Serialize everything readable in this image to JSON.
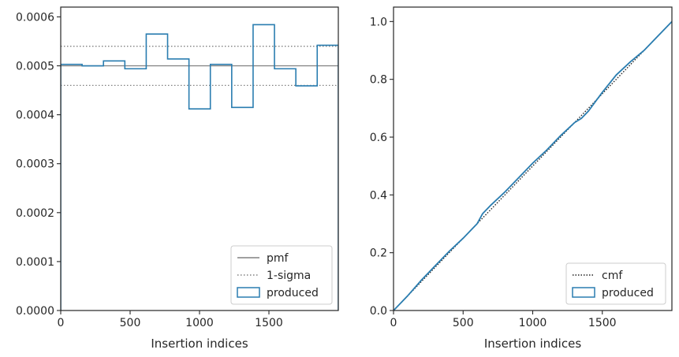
{
  "colors": {
    "hist": "#2a7db0",
    "pmf": "#808080",
    "sigma": "#808080",
    "cmf": "#222222",
    "axes": "#262626"
  },
  "chart_data": [
    {
      "type": "line",
      "xlabel": "Insertion indices",
      "ylabel": "",
      "xlim": [
        0,
        2000
      ],
      "ylim": [
        0,
        0.00062
      ],
      "xticks": [
        0,
        500,
        1000,
        1500
      ],
      "xtick_labels": [
        "0",
        "500",
        "1000",
        "1500"
      ],
      "yticks": [
        0,
        0.0001,
        0.0002,
        0.0003,
        0.0004,
        0.0005,
        0.0006
      ],
      "ytick_labels": [
        "0.0000",
        "0.0001",
        "0.0002",
        "0.0003",
        "0.0004",
        "0.0005",
        "0.0006"
      ],
      "grid": false,
      "legend_position": "lower-right",
      "hlines": [
        {
          "name": "pmf",
          "y": 0.0005,
          "style": "solid"
        },
        {
          "name": "1-sigma",
          "y": 0.00054,
          "style": "dotted"
        },
        {
          "name": "1-sigma",
          "y": 0.00046,
          "style": "dotted"
        }
      ],
      "histogram": {
        "name": "produced",
        "bin_edges": [
          0,
          154,
          308,
          462,
          616,
          770,
          924,
          1078,
          1232,
          1386,
          1540,
          1694,
          1848,
          2000
        ],
        "values": [
          0.000503,
          0.0005,
          0.00051,
          0.000494,
          0.000565,
          0.000514,
          0.000412,
          0.000503,
          0.000415,
          0.000584,
          0.000494,
          0.000459,
          0.000542
        ]
      },
      "legend": [
        "pmf",
        "1-sigma",
        "produced"
      ]
    },
    {
      "type": "line",
      "xlabel": "Insertion indices",
      "ylabel": "",
      "xlim": [
        0,
        2000
      ],
      "ylim": [
        0,
        1.05
      ],
      "xticks": [
        0,
        500,
        1000,
        1500
      ],
      "xtick_labels": [
        "0",
        "500",
        "1000",
        "1500"
      ],
      "yticks": [
        0,
        0.2,
        0.4,
        0.6,
        0.8,
        1.0
      ],
      "ytick_labels": [
        "0.0",
        "0.2",
        "0.4",
        "0.6",
        "0.8",
        "1.0"
      ],
      "grid": false,
      "legend_position": "lower-right",
      "series": [
        {
          "name": "cmf",
          "style": "dotted",
          "x": [
            0,
            2000
          ],
          "y": [
            0,
            1.0
          ]
        },
        {
          "name": "produced",
          "style": "solid",
          "x": [
            0,
            100,
            200,
            300,
            400,
            500,
            600,
            640,
            700,
            800,
            900,
            1000,
            1100,
            1200,
            1300,
            1350,
            1400,
            1500,
            1600,
            1700,
            1800,
            1900,
            2000
          ],
          "y": [
            0,
            0.05,
            0.105,
            0.155,
            0.205,
            0.25,
            0.3,
            0.335,
            0.365,
            0.41,
            0.46,
            0.51,
            0.555,
            0.605,
            0.65,
            0.665,
            0.69,
            0.755,
            0.815,
            0.86,
            0.9,
            0.95,
            1.0
          ]
        }
      ],
      "legend": [
        "cmf",
        "produced"
      ]
    }
  ]
}
